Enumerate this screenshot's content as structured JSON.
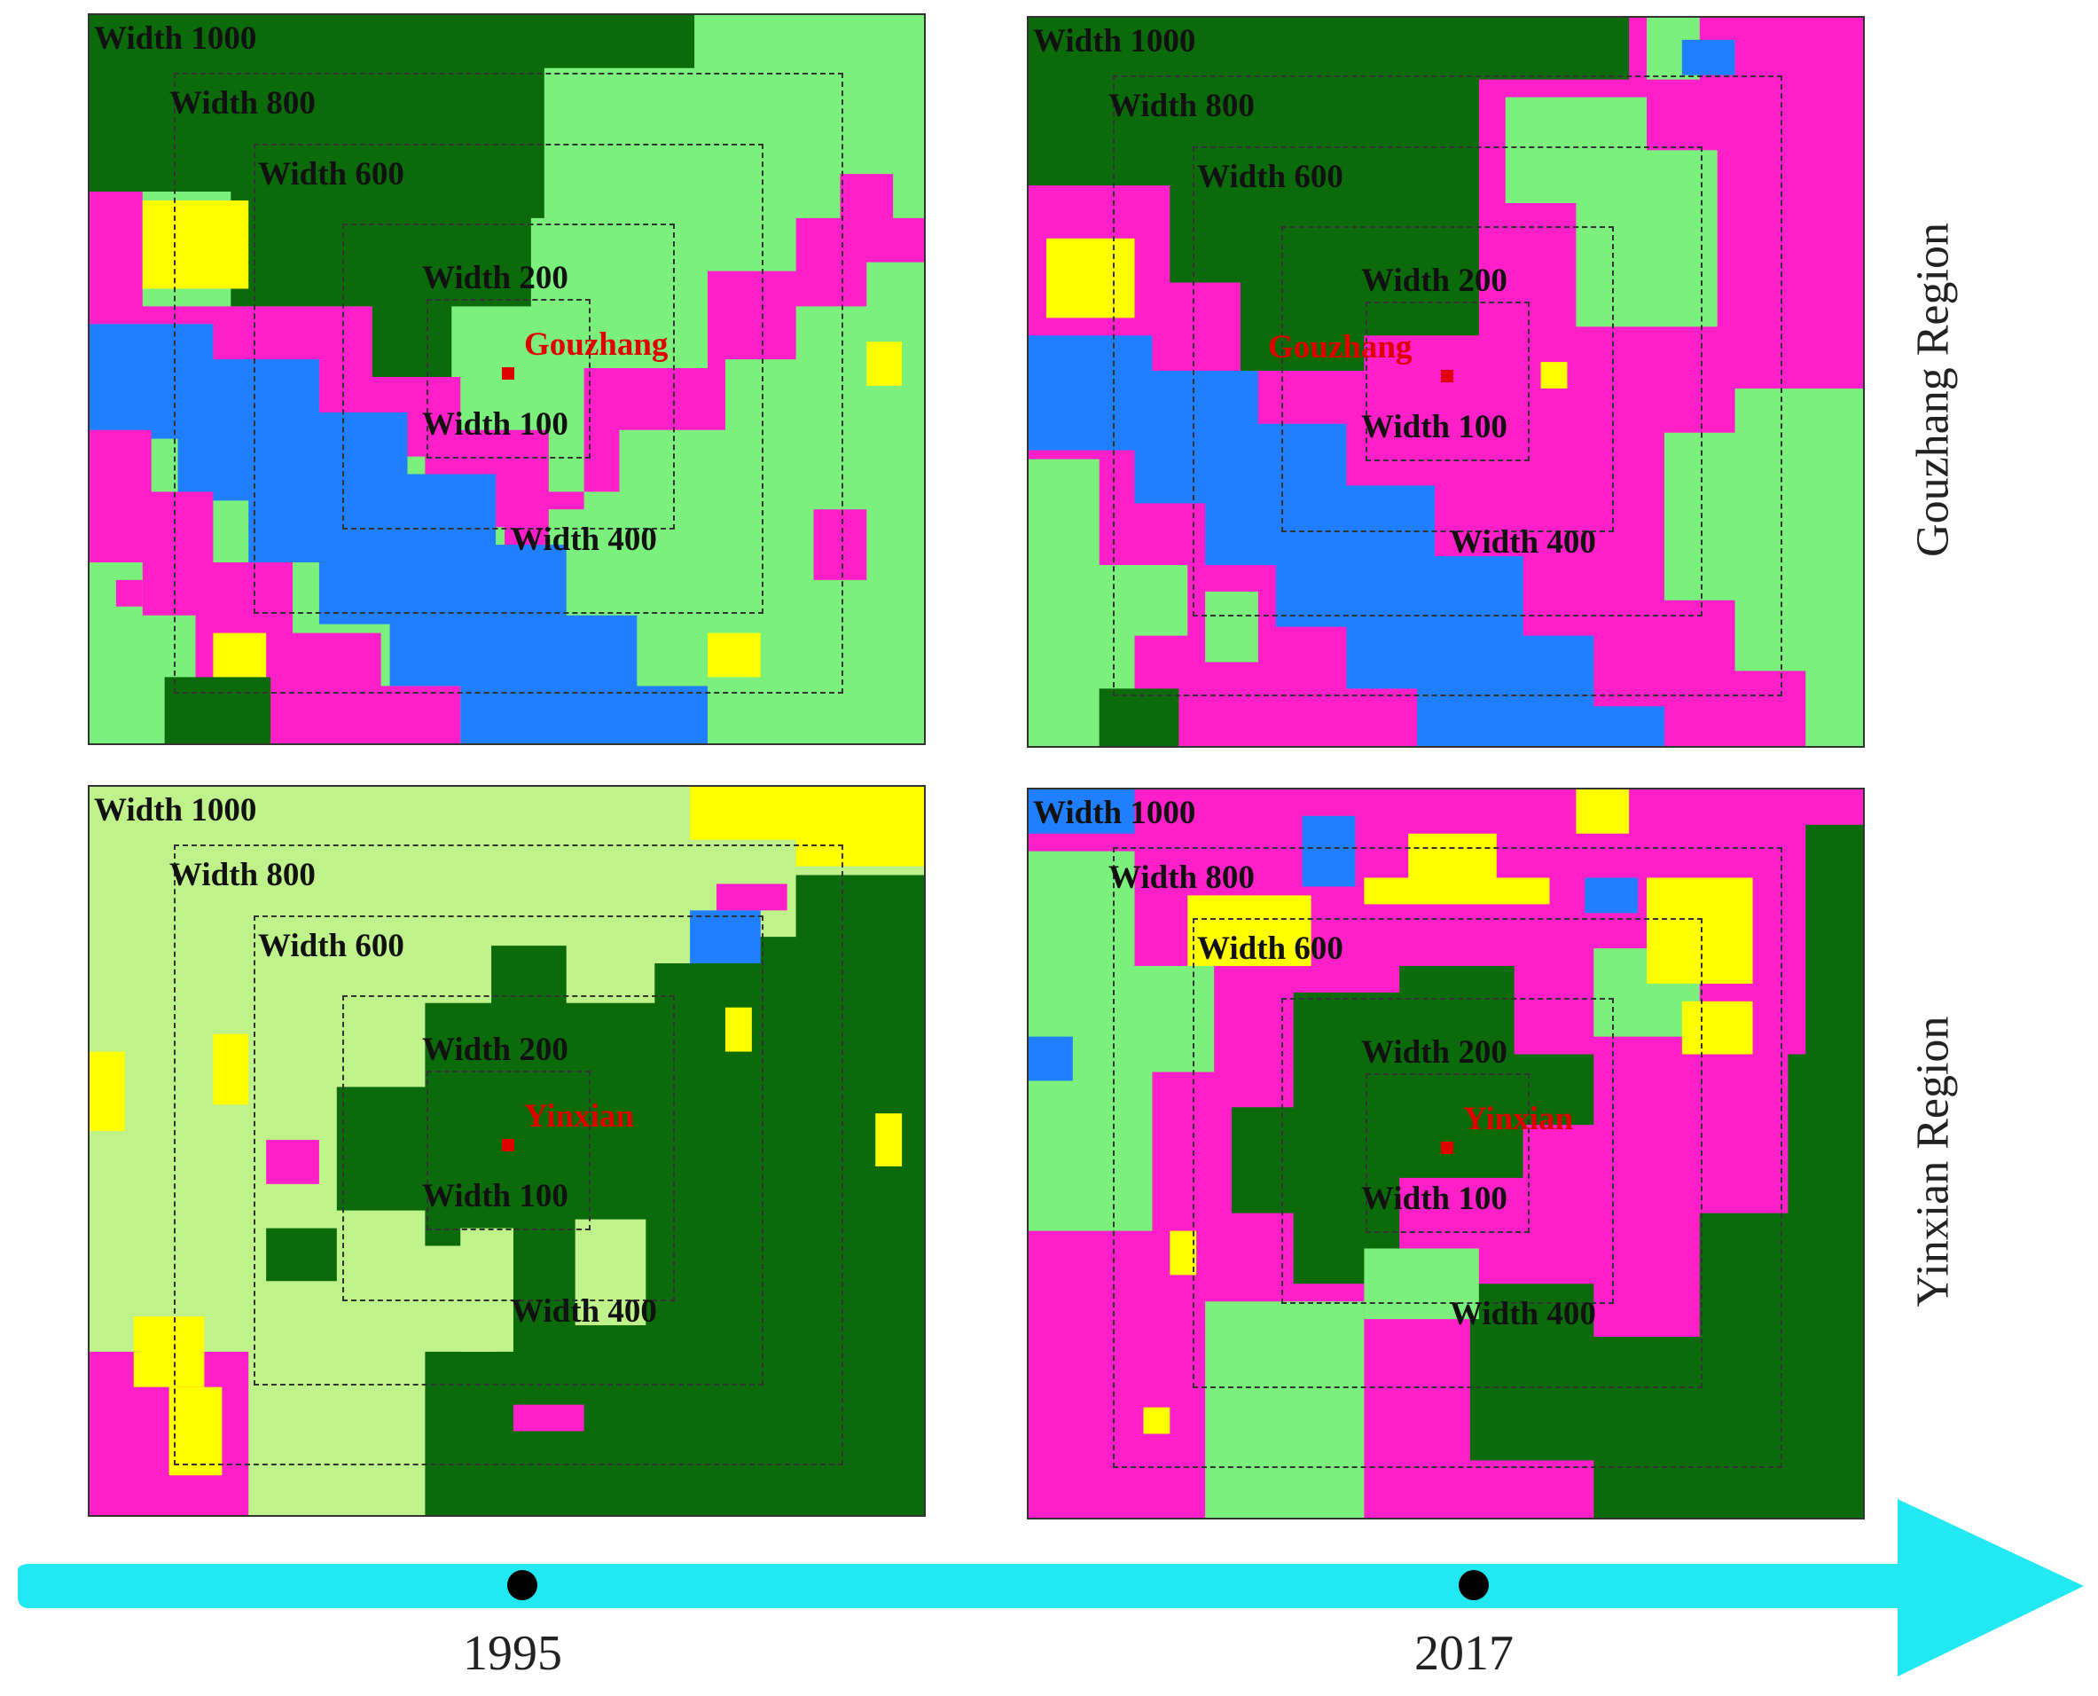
{
  "colors": {
    "dark_green": "#0b6b0b",
    "light_green": "#7cf07c",
    "pale_green": "#bff28a",
    "magenta": "#ff1fc8",
    "yellow": "#ffff00",
    "blue": "#1f7fff",
    "timeline": "#22e8f2",
    "marker": "#e00000"
  },
  "width_labels": [
    "Width 1000",
    "Width 800",
    "Width 600",
    "Width 200",
    "Width 100",
    "Width 400"
  ],
  "panels": [
    {
      "id": "gouzhang-1995",
      "site": "Gouzhang"
    },
    {
      "id": "gouzhang-2017",
      "site": "Gouzhang"
    },
    {
      "id": "yinxian-1995",
      "site": "Yinxian"
    },
    {
      "id": "yinxian-2017",
      "site": "Yinxian"
    }
  ],
  "regions": [
    "Gouzhang Region",
    "Yinxian Region"
  ],
  "timeline": {
    "years": [
      "1995",
      "2017"
    ]
  }
}
